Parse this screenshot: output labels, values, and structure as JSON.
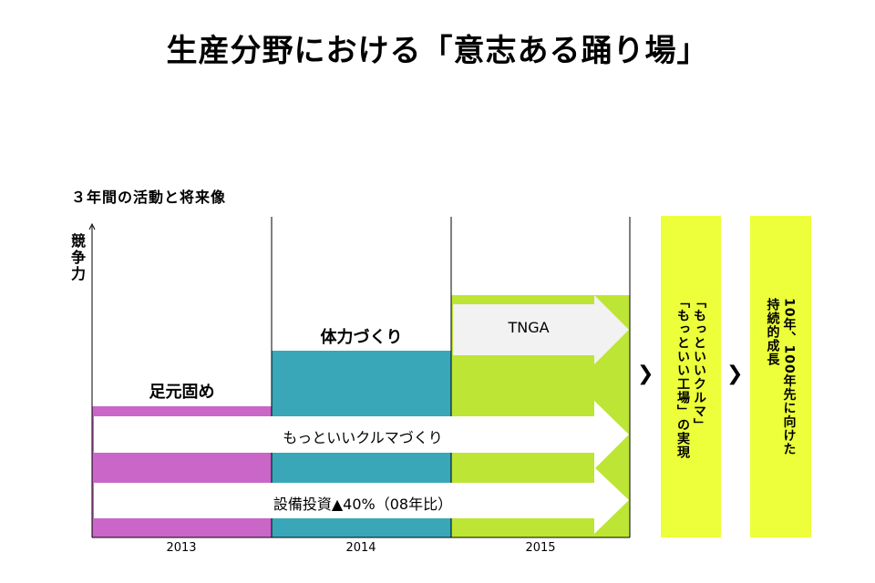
{
  "title": "生産分野における「意志ある踊り場」",
  "subtitle": "３年間の活動と将来像",
  "y_axis_label": "競争力",
  "columns": [
    {
      "year": "2013",
      "label": "足元固め"
    },
    {
      "year": "2014",
      "label": "体力づくり"
    },
    {
      "year": "2015",
      "label": ""
    }
  ],
  "arrows": {
    "tnga": "TNGA",
    "motto": "もっといいクルマづくり",
    "capex": "設備投資▲40%（08年比）"
  },
  "result_boxes": [
    "「もっといいクルマ」\n「もっといい工場」の実現",
    "10年、100年先に向けた\n持続的成長"
  ],
  "chevrons": [
    "❯",
    "❯"
  ],
  "colors": {
    "magenta": "#c966c8",
    "teal": "#39a7b8",
    "green": "#bde535",
    "yellow": "#ecff3a",
    "arrow_fill": "#f2f2f2"
  }
}
